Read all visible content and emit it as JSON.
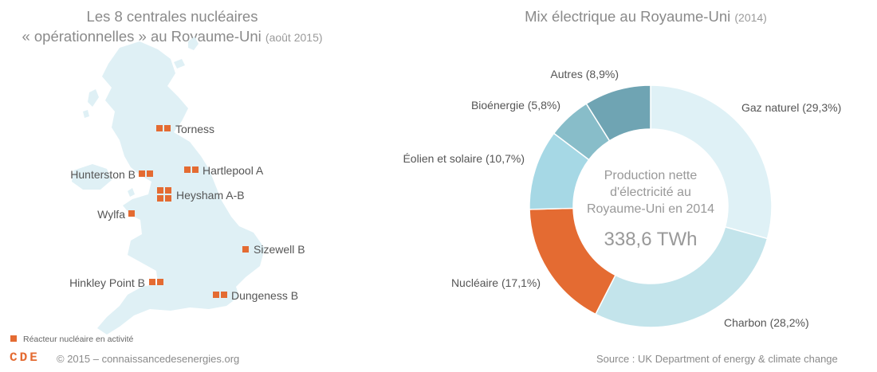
{
  "left_panel": {
    "title_line1": "Les 8 centrales nucléaires",
    "title_line2": "« opérationnelles » au Royaume-Uni",
    "title_date": "(août 2015)",
    "legend_label": "Réacteur nucléaire en activité",
    "plants": [
      {
        "name": "Torness",
        "reactors": 2
      },
      {
        "name": "Hartlepool A",
        "reactors": 2
      },
      {
        "name": "Hunterston B",
        "reactors": 2
      },
      {
        "name": "Heysham A-B",
        "reactors": 4
      },
      {
        "name": "Wylfa",
        "reactors": 1
      },
      {
        "name": "Sizewell B",
        "reactors": 1
      },
      {
        "name": "Hinkley Point B",
        "reactors": 2
      },
      {
        "name": "Dungeness B",
        "reactors": 2
      }
    ]
  },
  "chart_data": {
    "type": "pie",
    "title": "Mix électrique au Royaume-Uni",
    "subtitle": "(2014)",
    "center_text": [
      "Production nette",
      "d'électricité au",
      "Royaume-Uni en 2014"
    ],
    "center_value": "338,6 TWh",
    "slices": [
      {
        "label": "Gaz naturel (29,3%)",
        "value": 29.3,
        "color": "#dff1f6"
      },
      {
        "label": "Charbon (28,2%)",
        "value": 28.2,
        "color": "#c3e4eb"
      },
      {
        "label": "Nucléaire (17,1%)",
        "value": 17.1,
        "color": "#e46b32"
      },
      {
        "label": "Éolien et solaire (10,7%)",
        "value": 10.7,
        "color": "#a6d8e5"
      },
      {
        "label": "Bioénergie (5,8%)",
        "value": 5.8,
        "color": "#88bdc9"
      },
      {
        "label": "Autres (8,9%)",
        "value": 8.9,
        "color": "#6fa4b3"
      }
    ]
  },
  "footer": {
    "logo": "CDE",
    "copyright": "© 2015 – connaissancedesenergies.org",
    "source": "Source : UK Department of energy & climate change"
  },
  "colors": {
    "reactor": "#e46b32",
    "map": "#dff0f5",
    "text": "#555555"
  }
}
